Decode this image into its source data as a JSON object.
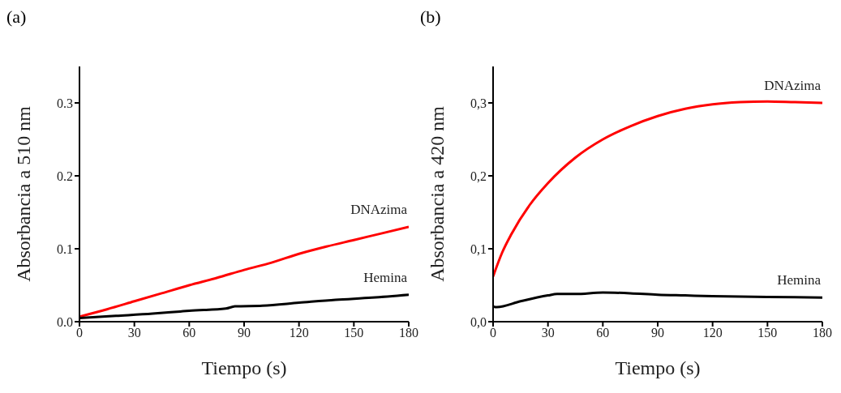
{
  "chart_data": [
    {
      "type": "line",
      "title": "(a)",
      "xlabel": "Tiempo (s)",
      "ylabel": "Absorbancia a 510 nm",
      "xlim": [
        0,
        180
      ],
      "xticks": [
        0,
        30,
        60,
        90,
        120,
        150,
        180
      ],
      "ylim": [
        0,
        0.35
      ],
      "yticks": [
        {
          "value": 0,
          "label": "0.0"
        },
        0.1,
        0.2,
        0.3
      ],
      "marker": "none",
      "line_style": "solid",
      "series": [
        {
          "name": "DNAzima",
          "color": "#ff0000",
          "x": [
            0,
            15,
            30,
            45,
            60,
            75,
            90,
            105,
            120,
            135,
            150,
            165,
            180
          ],
          "values": [
            0.007,
            0.017,
            0.028,
            0.039,
            0.05,
            0.06,
            0.071,
            0.081,
            0.093,
            0.103,
            0.112,
            0.121,
            0.13
          ]
        },
        {
          "name": "Hemina",
          "color": "#000000",
          "x": [
            0,
            20,
            40,
            55,
            60,
            80,
            85,
            100,
            120,
            140,
            160,
            180
          ],
          "values": [
            0.005,
            0.008,
            0.011,
            0.014,
            0.015,
            0.018,
            0.021,
            0.022,
            0.026,
            0.03,
            0.033,
            0.037
          ]
        }
      ]
    },
    {
      "type": "line",
      "title": "(b)",
      "xlabel": "Tiempo (s)",
      "ylabel": "Absorbancia a 420 nm",
      "xlim": [
        0,
        180
      ],
      "xticks": [
        0,
        30,
        60,
        90,
        120,
        150,
        180
      ],
      "ylim": [
        0,
        0.35
      ],
      "yticks": [
        {
          "value": 0,
          "label": "0,0"
        },
        {
          "value": 0.1,
          "label": "0,1"
        },
        {
          "value": 0.2,
          "label": "0,2"
        },
        {
          "value": 0.3,
          "label": "0,3"
        }
      ],
      "marker": "none",
      "line_style": "solid",
      "series": [
        {
          "name": "DNAzima",
          "color": "#ff0000",
          "x": [
            0,
            5,
            10,
            20,
            30,
            45,
            60,
            75,
            90,
            105,
            120,
            135,
            150,
            165,
            180
          ],
          "values": [
            0.062,
            0.095,
            0.12,
            0.16,
            0.19,
            0.225,
            0.25,
            0.268,
            0.282,
            0.292,
            0.298,
            0.301,
            0.302,
            0.301,
            0.3
          ]
        },
        {
          "name": "Hemina",
          "color": "#000000",
          "x": [
            0,
            2,
            15,
            30,
            35,
            45,
            60,
            75,
            90,
            105,
            120,
            150,
            180
          ],
          "values": [
            0.021,
            0.02,
            0.028,
            0.036,
            0.038,
            0.038,
            0.04,
            0.039,
            0.037,
            0.036,
            0.035,
            0.034,
            0.033
          ]
        }
      ]
    }
  ]
}
